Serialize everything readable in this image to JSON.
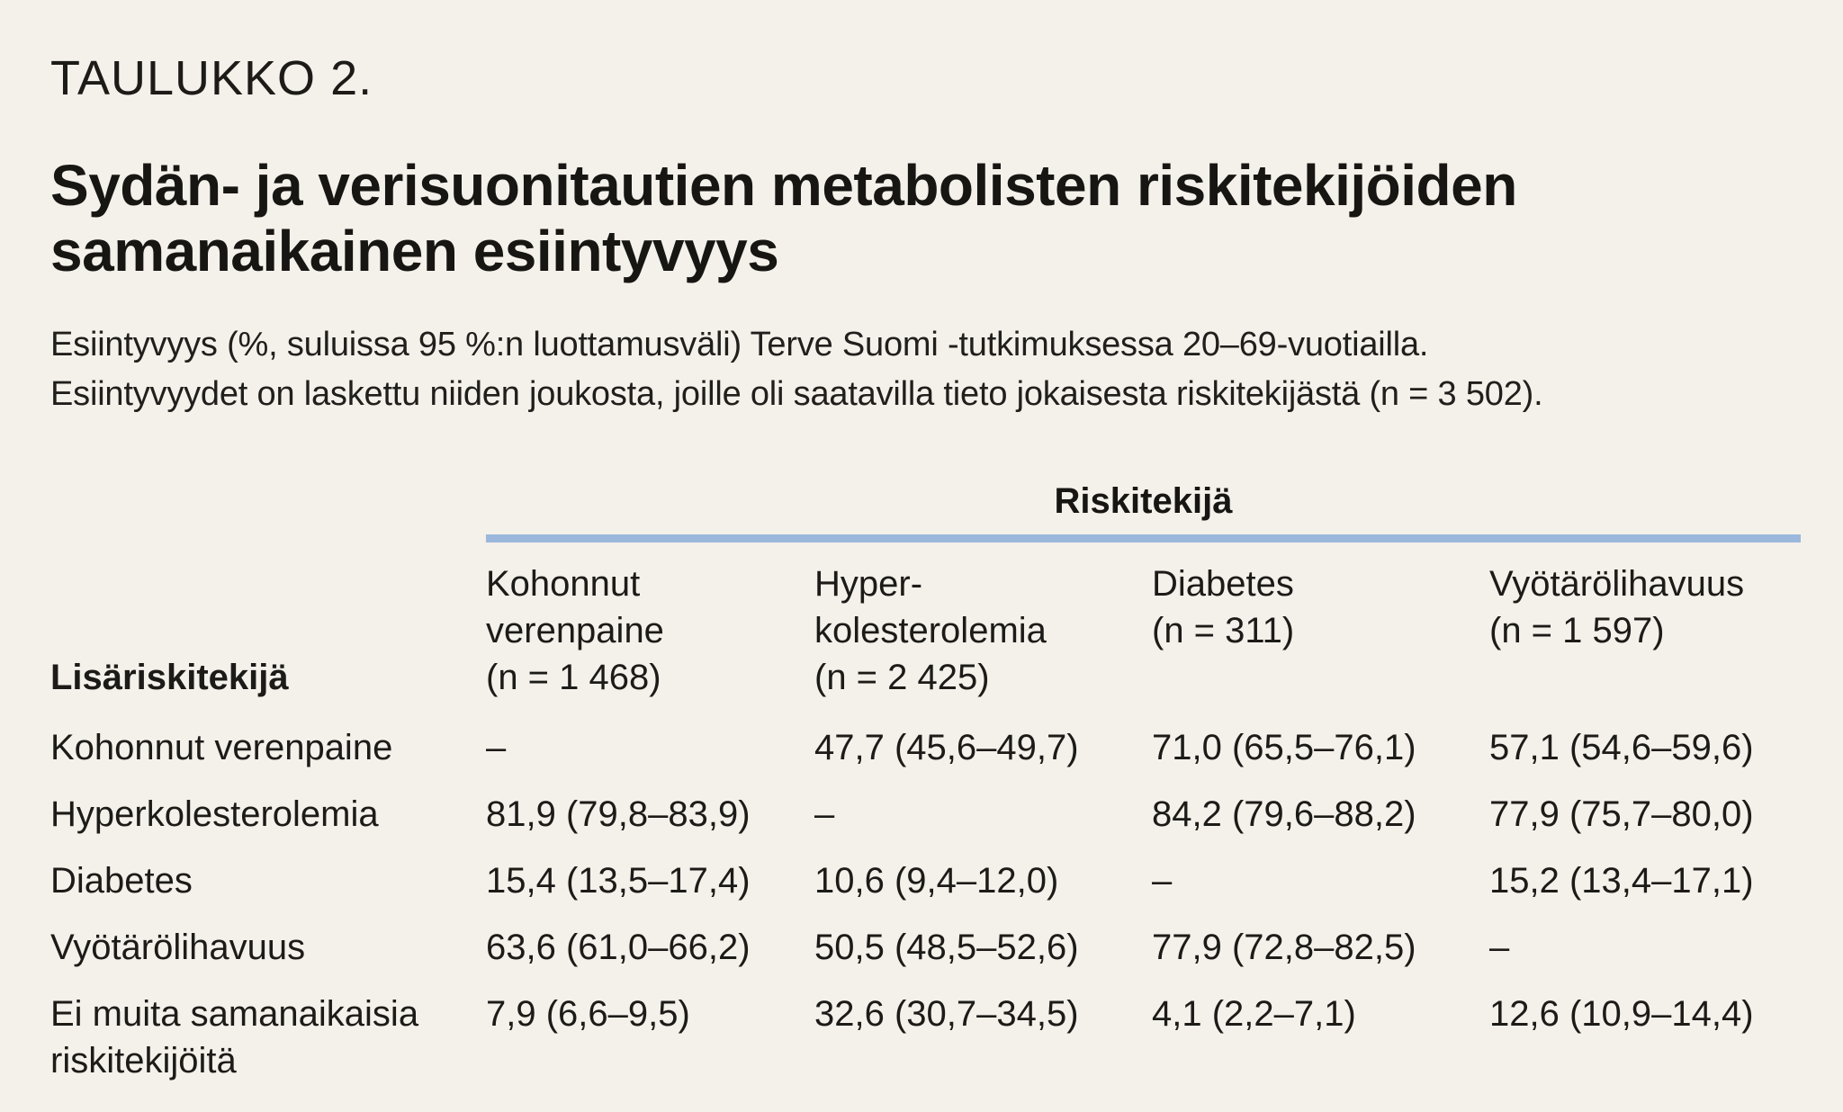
{
  "page": {
    "kicker": "TAULUKKO 2.",
    "title_line1": "Sydän- ja verisuonitautien metabolisten riskitekijöiden",
    "title_line2": "samanaikainen esiintyvyys",
    "subtitle_line1": "Esiintyvyys (%, suluissa 95 %:n luottamusväli) Terve Suomi -tutkimuksessa 20–69-vuotiailla.",
    "subtitle_line2": "Esiintyvyydet on laskettu niiden joukosta, joille oli saatavilla tieto jokaisesta riskitekijästä (n = 3 502)."
  },
  "colors": {
    "background": "#f4f0ea",
    "text": "#1c1b18",
    "rule_blue": "#9bb8dc"
  },
  "chart_data": {
    "type": "table",
    "title": "Sydän- ja verisuonitautien metabolisten riskitekijöiden samanaikainen esiintyvyys",
    "group_header": "Riskitekijä",
    "row_header": "Lisäriskitekijä",
    "col_headers": [
      {
        "label": "Kohonnut verenpaine (n = 1 468)",
        "lines": [
          "Kohonnut",
          "verenpaine",
          "(n = 1 468)"
        ]
      },
      {
        "label": "Hyperkolesterolemia (n = 2 425)",
        "lines": [
          "Hyper-",
          "kolesterolemia",
          "(n = 2 425)"
        ]
      },
      {
        "label": "Diabetes (n = 311)",
        "lines": [
          "Diabetes",
          "(n = 311)"
        ]
      },
      {
        "label": "Vyötärölihavuus (n = 1 597)",
        "lines": [
          "Vyötärölihavuus",
          "(n = 1 597)"
        ]
      }
    ],
    "rows": [
      {
        "label": "Kohonnut verenpaine",
        "values": [
          "–",
          "47,7 (45,6–49,7)",
          "71,0 (65,5–76,1)",
          "57,1 (54,6–59,6)"
        ]
      },
      {
        "label": "Hyperkolesterolemia",
        "values": [
          "81,9 (79,8–83,9)",
          "–",
          "84,2 (79,6–88,2)",
          "77,9 (75,7–80,0)"
        ]
      },
      {
        "label": "Diabetes",
        "values": [
          "15,4 (13,5–17,4)",
          "10,6 (9,4–12,0)",
          "–",
          "15,2 (13,4–17,1)"
        ]
      },
      {
        "label": "Vyötärölihavuus",
        "values": [
          "63,6 (61,0–66,2)",
          "50,5 (48,5–52,6)",
          "77,9 (72,8–82,5)",
          "–"
        ]
      },
      {
        "label": "Ei muita samanaikaisia riskitekijöitä",
        "values": [
          "7,9 (6,6–9,5)",
          "32,6 (30,7–34,5)",
          "4,1 (2,2–7,1)",
          "12,6 (10,9–14,4)"
        ]
      }
    ]
  }
}
